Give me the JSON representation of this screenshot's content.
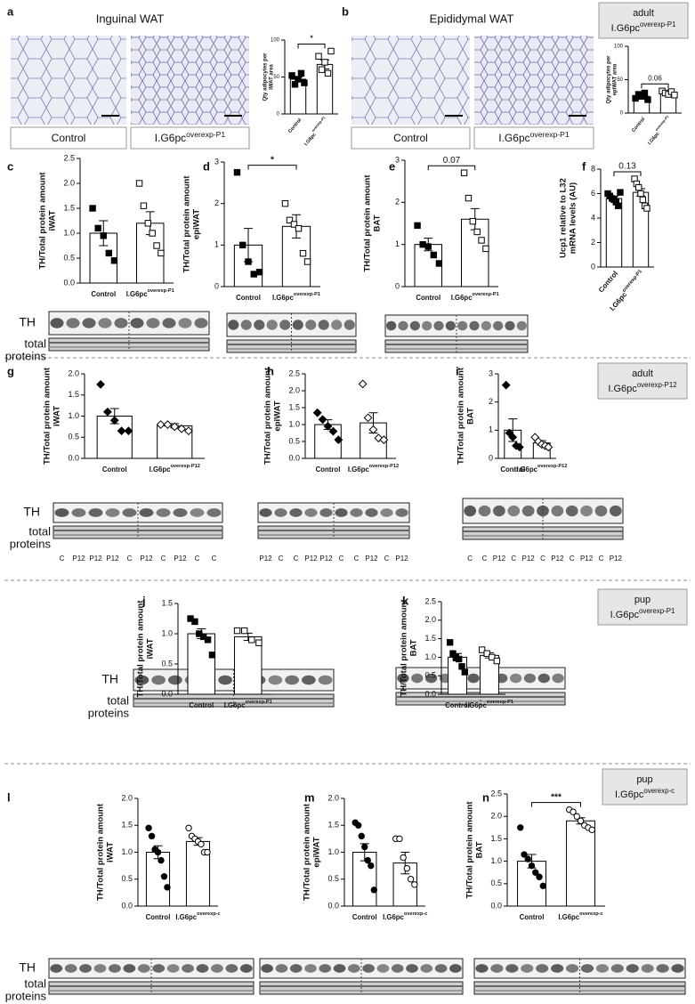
{
  "micrographs": [
    {
      "panel": "a",
      "title": "Inguinal WAT",
      "labels": [
        "Control",
        "I.G6pc"
      ],
      "label_sup": [
        null,
        "overexp-P1"
      ]
    },
    {
      "panel": "b",
      "title": "Epididymal WAT",
      "labels": [
        "Control",
        "I.G6pc"
      ],
      "label_sup": [
        null,
        "overexp-P1"
      ]
    }
  ],
  "groups": [
    {
      "line1": "adult",
      "base": "I.G6pc",
      "sup": "overexp-P1"
    },
    {
      "line1": "adult",
      "base": "I.G6pc",
      "sup": "overexp-P12"
    },
    {
      "line1": "pup",
      "base": "I.G6pc",
      "sup": "overexp-P1"
    },
    {
      "line1": "pup",
      "base": "I.G6pc",
      "sup": "overexp-c"
    }
  ],
  "blot_labels": [
    {
      "th": "TH",
      "total": "total",
      "proteins": "proteins"
    },
    {
      "th": "TH",
      "total": "total",
      "proteins": "proteins"
    },
    {
      "th": "TH",
      "total": "total",
      "proteins": "proteins"
    },
    {
      "th": "TH",
      "total": "total",
      "proteins": "proteins"
    }
  ],
  "lanes": {
    "g": [
      "C",
      "P12",
      "P12",
      "P12",
      "C",
      "P12",
      "C",
      "P12",
      "C",
      "C"
    ],
    "h": [
      "P12",
      "C",
      "C",
      "P12",
      "P12",
      "C",
      "C",
      "P12",
      "C",
      "P12"
    ],
    "i": [
      "C",
      "C",
      "P12",
      "C",
      "P12",
      "C",
      "P12",
      "C",
      "P12",
      "C",
      "P12"
    ]
  },
  "chart_data": [
    {
      "type": "bar",
      "ylabel": [
        "Qty adipocytes per",
        "iWAT area"
      ],
      "categories": [
        "Control",
        "I.G6pc"
      ],
      "category_sup": [
        null,
        "overexp-P1"
      ],
      "values": [
        47,
        67
      ],
      "errors": [
        3,
        6
      ],
      "points": [
        [
          52,
          40,
          47,
          55,
          42
        ],
        [
          78,
          60,
          70,
          55,
          85
        ]
      ],
      "marker": "square",
      "point_colors": [
        "#000000",
        "#ffffff"
      ],
      "color": "#ffffff",
      "edge_color": "#000000",
      "ylim": [
        0,
        100
      ],
      "yticks": [
        0,
        50,
        100
      ],
      "annotation": "*"
    },
    {
      "type": "bar",
      "ylabel": [
        "Qty adipocytes per",
        "epiWAT area"
      ],
      "categories": [
        "Control",
        "I.G6pc"
      ],
      "category_sup": [
        null,
        "overexp-P1"
      ],
      "values": [
        25,
        30
      ],
      "errors": [
        2,
        2
      ],
      "points": [
        [
          22,
          28,
          25,
          30,
          20
        ],
        [
          33,
          30,
          28,
          32,
          27
        ]
      ],
      "marker": "square",
      "point_colors": [
        "#000000",
        "#ffffff"
      ],
      "color": "#ffffff",
      "edge_color": "#000000",
      "ylim": [
        0,
        100
      ],
      "yticks": [
        0,
        50,
        100
      ],
      "annotation": "0.06"
    },
    {
      "type": "bar",
      "panel": "c",
      "ylabel": [
        "TH/Total protein amount",
        "iWAT"
      ],
      "categories": [
        "Control",
        "I.G6pc"
      ],
      "category_sup": [
        null,
        "overexp-P1"
      ],
      "values": [
        1.0,
        1.2
      ],
      "errors": [
        0.25,
        0.23
      ],
      "points": [
        [
          1.5,
          1.1,
          0.95,
          0.6,
          0.45
        ],
        [
          2.0,
          1.55,
          1.2,
          1.0,
          0.75,
          0.6
        ]
      ],
      "marker": "square",
      "point_colors": [
        "#000000",
        "#ffffff"
      ],
      "color": "#ffffff",
      "edge_color": "#000000",
      "ylim": [
        0,
        2.5
      ],
      "yticks": [
        {
          "value": 0,
          "label": "0.0"
        },
        0.5,
        {
          "value": 1,
          "label": "1.0"
        },
        1.5,
        {
          "value": 2,
          "label": "2.0"
        },
        2.5
      ]
    },
    {
      "type": "bar",
      "panel": "d",
      "ylabel": [
        "TH/Total protein amount",
        "epiWAT"
      ],
      "categories": [
        "Control",
        "I.G6pc"
      ],
      "category_sup": [
        null,
        "overexp-P1"
      ],
      "values": [
        1.0,
        1.45
      ],
      "errors": [
        0.4,
        0.28
      ],
      "points": [
        [
          2.75,
          1.0,
          0.6,
          0.3,
          0.35
        ],
        [
          2.0,
          1.6,
          1.5,
          1.4,
          0.8,
          0.6
        ]
      ],
      "marker": "square",
      "point_colors": [
        "#000000",
        "#ffffff"
      ],
      "color": "#ffffff",
      "edge_color": "#000000",
      "ylim": [
        0,
        3
      ],
      "yticks": [
        0,
        1,
        2,
        3
      ],
      "annotation": "*"
    },
    {
      "type": "bar",
      "panel": "e",
      "ylabel": [
        "TH/Total protein amount",
        "BAT"
      ],
      "categories": [
        "Control",
        "I.G6pc"
      ],
      "category_sup": [
        null,
        "overexp-P1"
      ],
      "values": [
        1.0,
        1.6
      ],
      "errors": [
        0.15,
        0.25
      ],
      "points": [
        [
          1.45,
          1.0,
          0.95,
          0.75,
          0.55
        ],
        [
          2.7,
          2.1,
          1.55,
          1.3,
          1.1,
          0.9
        ]
      ],
      "marker": "square",
      "point_colors": [
        "#000000",
        "#ffffff"
      ],
      "color": "#ffffff",
      "edge_color": "#000000",
      "ylim": [
        0,
        3
      ],
      "yticks": [
        0,
        1,
        2,
        3
      ],
      "annotation": "0.07"
    },
    {
      "type": "bar",
      "panel": "f",
      "ylabel": [
        "Ucp1 relative to L32",
        "mRNA levels (AU)"
      ],
      "categories": [
        "Control",
        "I.G6pc"
      ],
      "category_sup": [
        null,
        "overexp-P1"
      ],
      "values": [
        5.6,
        6.1
      ],
      "errors": [
        0.2,
        0.3
      ],
      "points": [
        [
          6.0,
          5.8,
          5.6,
          5.5,
          5.3,
          5.0,
          6.1
        ],
        [
          7.2,
          6.8,
          6.5,
          6.0,
          5.5,
          5.0,
          4.8
        ]
      ],
      "marker": "square",
      "point_colors": [
        "#000000",
        "#ffffff"
      ],
      "color": "#ffffff",
      "edge_color": "#000000",
      "ylim": [
        0,
        8
      ],
      "yticks": [
        0,
        2,
        4,
        6,
        8
      ],
      "annotation": "0.13"
    },
    {
      "type": "bar",
      "panel": "g",
      "ylabel": [
        "TH/Total protein amount",
        "iWAT"
      ],
      "categories": [
        "Control",
        "I.G6pc"
      ],
      "category_sup": [
        null,
        "overexp-P12"
      ],
      "values": [
        1.0,
        0.77
      ],
      "errors": [
        0.18,
        0.05
      ],
      "points": [
        [
          1.75,
          1.1,
          0.9,
          0.65,
          0.65
        ],
        [
          0.8,
          0.8,
          0.75,
          0.7,
          0.65
        ]
      ],
      "marker": "diamond",
      "point_colors": [
        "#000000",
        "#ffffff"
      ],
      "color": "#ffffff",
      "edge_color": "#000000",
      "ylim": [
        0,
        2
      ],
      "yticks": [
        {
          "value": 0,
          "label": "0.0"
        },
        0.5,
        {
          "value": 1,
          "label": "1.0"
        },
        1.5,
        {
          "value": 2,
          "label": "2.0"
        }
      ]
    },
    {
      "type": "bar",
      "panel": "h",
      "ylabel": [
        "TH/Total protein amount",
        "epiWAT"
      ],
      "categories": [
        "Control",
        "I.G6pc"
      ],
      "category_sup": [
        null,
        "overexp-P12"
      ],
      "values": [
        1.0,
        1.05
      ],
      "errors": [
        0.14,
        0.3
      ],
      "points": [
        [
          1.35,
          1.15,
          0.95,
          0.8,
          0.55
        ],
        [
          2.2,
          1.2,
          0.85,
          0.6,
          0.55
        ]
      ],
      "marker": "diamond",
      "point_colors": [
        "#000000",
        "#ffffff"
      ],
      "color": "#ffffff",
      "edge_color": "#000000",
      "ylim": [
        0,
        2.5
      ],
      "yticks": [
        {
          "value": 0,
          "label": "0.0"
        },
        0.5,
        {
          "value": 1,
          "label": "1.0"
        },
        1.5,
        {
          "value": 2,
          "label": "2.0"
        },
        2.5
      ]
    },
    {
      "type": "bar",
      "panel": "i",
      "ylabel": [
        "TH/Total protein amount",
        "BAT"
      ],
      "categories": [
        "Control",
        "I.G6pc"
      ],
      "category_sup": [
        null,
        "overexp-P12"
      ],
      "values": [
        1.0,
        0.55
      ],
      "errors": [
        0.4,
        0.08
      ],
      "points": [
        [
          2.6,
          0.9,
          0.75,
          0.45,
          0.4
        ],
        [
          0.75,
          0.6,
          0.5,
          0.45,
          0.4
        ]
      ],
      "marker": "diamond",
      "point_colors": [
        "#000000",
        "#ffffff"
      ],
      "color": "#ffffff",
      "edge_color": "#000000",
      "ylim": [
        0,
        3
      ],
      "yticks": [
        0,
        1,
        2,
        3
      ]
    },
    {
      "type": "bar",
      "panel": "j",
      "ylabel": [
        "TH/Total protein amount",
        "iWAT"
      ],
      "categories": [
        "Control",
        "I.G6pc"
      ],
      "category_sup": [
        null,
        "overexp-P1"
      ],
      "values": [
        1.0,
        0.95
      ],
      "errors": [
        0.08,
        0.06
      ],
      "points": [
        [
          1.25,
          1.2,
          1.0,
          0.95,
          0.9,
          0.65
        ],
        [
          1.05,
          1.05,
          0.9,
          0.85
        ]
      ],
      "marker": "square",
      "point_colors": [
        "#000000",
        "#ffffff"
      ],
      "color": "#ffffff",
      "edge_color": "#000000",
      "ylim": [
        0,
        1.5
      ],
      "yticks": [
        {
          "value": 0,
          "label": "0.0"
        },
        0.5,
        {
          "value": 1,
          "label": "1.0"
        },
        1.5
      ]
    },
    {
      "type": "bar",
      "panel": "k",
      "ylabel": [
        "TH/Total protein amount",
        "BAT"
      ],
      "categories": [
        "Control",
        "I.G6pc"
      ],
      "category_sup": [
        null,
        "overexp-P1"
      ],
      "values": [
        1.0,
        1.05
      ],
      "errors": [
        0.1,
        0.07
      ],
      "points": [
        [
          1.4,
          1.1,
          1.0,
          0.95,
          0.75,
          0.6
        ],
        [
          1.2,
          1.1,
          1.0,
          0.9
        ]
      ],
      "marker": "square",
      "point_colors": [
        "#000000",
        "#ffffff"
      ],
      "color": "#ffffff",
      "edge_color": "#000000",
      "ylim": [
        0,
        2.5
      ],
      "yticks": [
        {
          "value": 0,
          "label": "0.0"
        },
        0.5,
        {
          "value": 1,
          "label": "1.0"
        },
        1.5,
        {
          "value": 2,
          "label": "2.0"
        },
        2.5
      ]
    },
    {
      "type": "bar",
      "panel": "l",
      "ylabel": [
        "TH/Total protein amount",
        "iWAT"
      ],
      "categories": [
        "Control",
        "I.G6pc"
      ],
      "category_sup": [
        null,
        "overexp-c"
      ],
      "values": [
        1.0,
        1.2
      ],
      "errors": [
        0.12,
        0.07
      ],
      "points": [
        [
          1.45,
          1.3,
          1.05,
          1.0,
          0.85,
          0.55,
          0.35
        ],
        [
          1.45,
          1.3,
          1.25,
          1.2,
          1.15,
          1.0,
          1.0
        ]
      ],
      "marker": "circle",
      "point_colors": [
        "#000000",
        "#ffffff"
      ],
      "color": "#ffffff",
      "edge_color": "#000000",
      "ylim": [
        0,
        2
      ],
      "yticks": [
        {
          "value": 0,
          "label": "0.0"
        },
        0.5,
        {
          "value": 1,
          "label": "1.0"
        },
        1.5,
        {
          "value": 2,
          "label": "2.0"
        }
      ]
    },
    {
      "type": "bar",
      "panel": "m",
      "ylabel": [
        "TH/Total protein amount",
        "epiWAT"
      ],
      "categories": [
        "Control",
        "I.G6pc"
      ],
      "category_sup": [
        null,
        "overexp-c"
      ],
      "values": [
        1.0,
        0.8
      ],
      "errors": [
        0.16,
        0.2
      ],
      "points": [
        [
          1.55,
          1.5,
          1.3,
          1.1,
          0.85,
          0.75,
          0.3
        ],
        [
          1.25,
          1.25,
          0.9,
          0.7,
          0.5,
          0.4
        ]
      ],
      "marker": "circle",
      "point_colors": [
        "#000000",
        "#ffffff"
      ],
      "color": "#ffffff",
      "edge_color": "#000000",
      "ylim": [
        0,
        2
      ],
      "yticks": [
        {
          "value": 0,
          "label": "0.0"
        },
        0.5,
        {
          "value": 1,
          "label": "1.0"
        },
        1.5,
        {
          "value": 2,
          "label": "2.0"
        }
      ]
    },
    {
      "type": "bar",
      "panel": "n",
      "ylabel": [
        "TH/Total protein amount",
        "BAT"
      ],
      "categories": [
        "Control",
        "I.G6pc"
      ],
      "category_sup": [
        null,
        "overexp-c"
      ],
      "values": [
        1.0,
        1.9
      ],
      "errors": [
        0.15,
        0.07
      ],
      "points": [
        [
          1.75,
          1.15,
          1.05,
          0.9,
          0.75,
          0.65,
          0.45
        ],
        [
          2.15,
          2.1,
          2.0,
          1.9,
          1.8,
          1.75,
          1.7
        ]
      ],
      "marker": "circle",
      "point_colors": [
        "#000000",
        "#ffffff"
      ],
      "color": "#ffffff",
      "edge_color": "#000000",
      "ylim": [
        0,
        2.5
      ],
      "yticks": [
        {
          "value": 0,
          "label": "0.0"
        },
        0.5,
        {
          "value": 1,
          "label": "1.0"
        },
        1.5,
        {
          "value": 2,
          "label": "2.0"
        },
        2.5
      ],
      "annotation": "***"
    }
  ]
}
